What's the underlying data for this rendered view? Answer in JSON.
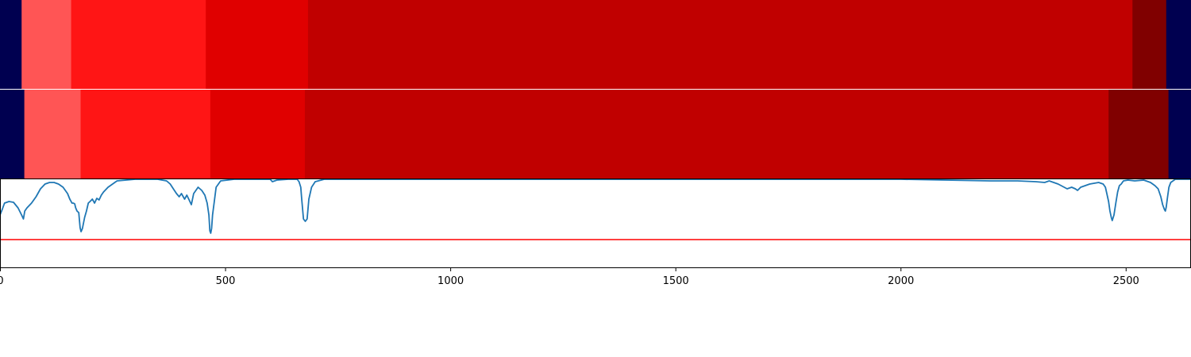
{
  "chart_data": {
    "type": "line",
    "x_range": [
      0,
      2645
    ],
    "xticks": [
      0,
      500,
      1000,
      1500,
      2000,
      2500
    ],
    "xtick_labels": [
      "0",
      "500",
      "1000",
      "1500",
      "2000",
      "2500"
    ],
    "color_bands": [
      {
        "segments": [
          {
            "start": 0,
            "end": 48,
            "color": "#000050"
          },
          {
            "start": 48,
            "end": 158,
            "color": "#ff5555"
          },
          {
            "start": 158,
            "end": 457,
            "color": "#ff1515"
          },
          {
            "start": 457,
            "end": 684,
            "color": "#e00000"
          },
          {
            "start": 684,
            "end": 2515,
            "color": "#c00000"
          },
          {
            "start": 2515,
            "end": 2590,
            "color": "#800000"
          },
          {
            "start": 2590,
            "end": 2645,
            "color": "#000050"
          }
        ]
      },
      {
        "segments": [
          {
            "start": 0,
            "end": 54,
            "color": "#000050"
          },
          {
            "start": 54,
            "end": 179,
            "color": "#ff5555"
          },
          {
            "start": 179,
            "end": 467,
            "color": "#ff1515"
          },
          {
            "start": 467,
            "end": 677,
            "color": "#e00000"
          },
          {
            "start": 677,
            "end": 2462,
            "color": "#c00000"
          },
          {
            "start": 2462,
            "end": 2595,
            "color": "#800000"
          },
          {
            "start": 2595,
            "end": 2645,
            "color": "#000050"
          }
        ]
      }
    ],
    "series": [
      {
        "color": "#1f77b4",
        "x": [
          0,
          5,
          10,
          20,
          30,
          40,
          48,
          52,
          55,
          60,
          70,
          80,
          90,
          100,
          110,
          120,
          130,
          140,
          150,
          155,
          160,
          163,
          166,
          168,
          171,
          175,
          178,
          180,
          183,
          188,
          192,
          196,
          200,
          205,
          210,
          215,
          220,
          225,
          230,
          240,
          260,
          300,
          350,
          370,
          378,
          385,
          392,
          398,
          403,
          410,
          415,
          420,
          425,
          430,
          440,
          448,
          455,
          460,
          464,
          466,
          468,
          470,
          472,
          476,
          480,
          490,
          520,
          560,
          600,
          605,
          615,
          640,
          660,
          664,
          668,
          670,
          674,
          678,
          682,
          686,
          692,
          700,
          720,
          1000,
          1500,
          2000,
          2200,
          2260,
          2300,
          2320,
          2330,
          2350,
          2370,
          2380,
          2388,
          2393,
          2400,
          2420,
          2440,
          2450,
          2455,
          2458,
          2462,
          2465,
          2468,
          2470,
          2474,
          2478,
          2482,
          2486,
          2490,
          2495,
          2505,
          2520,
          2540,
          2555,
          2565,
          2572,
          2578,
          2582,
          2586,
          2588,
          2590,
          2593,
          2596,
          2600,
          2605,
          2610,
          2645
        ],
        "y": [
          -45,
          -38,
          -30,
          -28,
          -29,
          -36,
          -45,
          -50,
          -40,
          -36,
          -30,
          -22,
          -12,
          -6,
          -4,
          -4,
          -6,
          -10,
          -18,
          -25,
          -30,
          -30,
          -31,
          -36,
          -40,
          -42,
          -61,
          -66,
          -62,
          -48,
          -40,
          -30,
          -28,
          -25,
          -30,
          -24,
          -26,
          -20,
          -16,
          -10,
          -2,
          0,
          0,
          -2,
          -6,
          -12,
          -18,
          -22,
          -18,
          -25,
          -20,
          -26,
          -32,
          -18,
          -10,
          -14,
          -20,
          -30,
          -45,
          -65,
          -68,
          -62,
          -45,
          -28,
          -10,
          -2,
          0,
          0,
          0,
          -3,
          -1,
          0,
          0,
          -3,
          -10,
          -25,
          -50,
          -53,
          -50,
          -25,
          -10,
          -3,
          0,
          0,
          0,
          0,
          -2,
          -2,
          -3,
          -4,
          -2,
          -6,
          -12,
          -10,
          -12,
          -14,
          -10,
          -6,
          -4,
          -6,
          -10,
          -18,
          -28,
          -40,
          -48,
          -52,
          -45,
          -30,
          -16,
          -8,
          -6,
          -2,
          -1,
          -2,
          -1,
          -4,
          -8,
          -12,
          -22,
          -32,
          -38,
          -40,
          -35,
          -22,
          -10,
          -4,
          -2,
          0,
          0
        ]
      }
    ],
    "hline": {
      "y": -76,
      "color": "#ff0000"
    },
    "ylim": [
      -112,
      0
    ]
  }
}
